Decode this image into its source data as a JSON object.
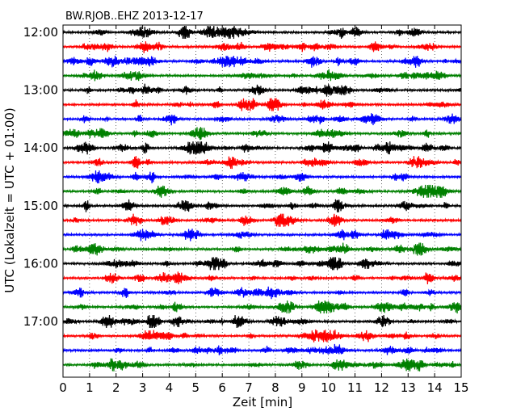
{
  "chart_data": {
    "type": "line",
    "title": "BW.RJOB..EHZ 2013-12-17",
    "xlabel": "Zeit  [min]",
    "ylabel": "UTC (Lokalzeit = UTC + 01:00)",
    "xlim": [
      0,
      15
    ],
    "x_ticks": [
      "0",
      "1",
      "2",
      "3",
      "4",
      "5",
      "6",
      "7",
      "8",
      "9",
      "10",
      "11",
      "12",
      "13",
      "14",
      "15"
    ],
    "y_ticks": [
      "12:00",
      "13:00",
      "14:00",
      "15:00",
      "16:00",
      "17:00"
    ],
    "start_time": "12:00",
    "trace_interval_min": 15,
    "trace_count": 24,
    "colors": [
      "#000000",
      "#ff0000",
      "#0000ff",
      "#008000"
    ],
    "grid": "vertical dotted lines at each minute"
  }
}
